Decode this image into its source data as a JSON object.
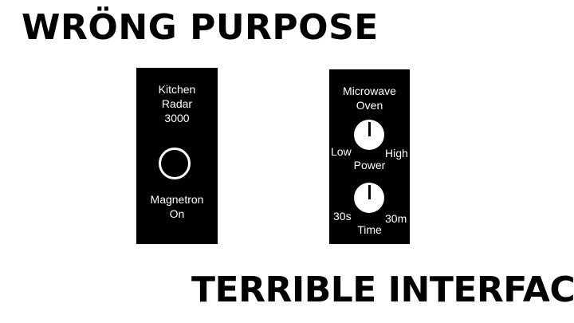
{
  "headlines": {
    "top": "WRÖNG PURPOSE",
    "bottom": "TERRIBLE INTERFACE"
  },
  "left_panel": {
    "title_lines": [
      "Kitchen",
      "Radar",
      "3000"
    ],
    "indicator_icon": "ring-indicator-light",
    "status_lines": [
      "Magnetron",
      "On"
    ]
  },
  "right_panel": {
    "title_lines": [
      "Microwave",
      "Oven"
    ],
    "power_dial": {
      "icon": "rotary-knob",
      "min_label": "Low",
      "max_label": "High",
      "label": "Power"
    },
    "time_dial": {
      "icon": "rotary-knob",
      "min_label": "30s",
      "max_label": "30m",
      "label": "Time"
    }
  },
  "colors": {
    "background": "#ffffff",
    "panel": "#000000",
    "panel_text": "#ffffff",
    "headline": "#000000"
  }
}
